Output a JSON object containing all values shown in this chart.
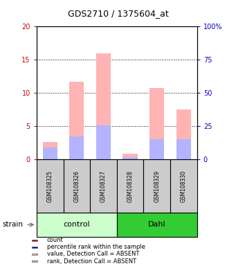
{
  "title": "GDS2710 / 1375604_at",
  "samples": [
    "GSM108325",
    "GSM108326",
    "GSM108327",
    "GSM108328",
    "GSM108329",
    "GSM108330"
  ],
  "groups": [
    {
      "name": "control",
      "indices": [
        0,
        1,
        2
      ],
      "color": "#ccffcc"
    },
    {
      "name": "Dahl",
      "indices": [
        3,
        4,
        5
      ],
      "color": "#33cc33"
    }
  ],
  "value_absent": [
    2.6,
    11.7,
    16.0,
    0.9,
    10.8,
    7.5
  ],
  "rank_absent": [
    1.8,
    3.5,
    5.1,
    0.35,
    3.1,
    3.1
  ],
  "count_present": [
    0,
    0,
    0,
    0,
    0,
    0
  ],
  "rank_present": [
    0,
    0,
    0,
    0,
    0,
    0
  ],
  "ylim_left": [
    0,
    20
  ],
  "ylim_right": [
    0,
    100
  ],
  "yticks_left": [
    0,
    5,
    10,
    15,
    20
  ],
  "ytick_labels_left": [
    "0",
    "5",
    "10",
    "15",
    "20"
  ],
  "yticks_right": [
    0,
    25,
    50,
    75,
    100
  ],
  "ytick_labels_right": [
    "0",
    "25",
    "50",
    "75",
    "100%"
  ],
  "color_value_absent": "#ffb3b3",
  "color_rank_absent": "#b3b3ff",
  "color_count_present": "#cc0000",
  "color_rank_present": "#0000cc",
  "bg_color": "#ffffff",
  "sample_bg_color": "#cccccc",
  "strain_label": "strain",
  "legend_items": [
    {
      "label": "count",
      "color": "#cc0000"
    },
    {
      "label": "percentile rank within the sample",
      "color": "#0000cc"
    },
    {
      "label": "value, Detection Call = ABSENT",
      "color": "#ffb3b3"
    },
    {
      "label": "rank, Detection Call = ABSENT",
      "color": "#b3b3ff"
    }
  ]
}
